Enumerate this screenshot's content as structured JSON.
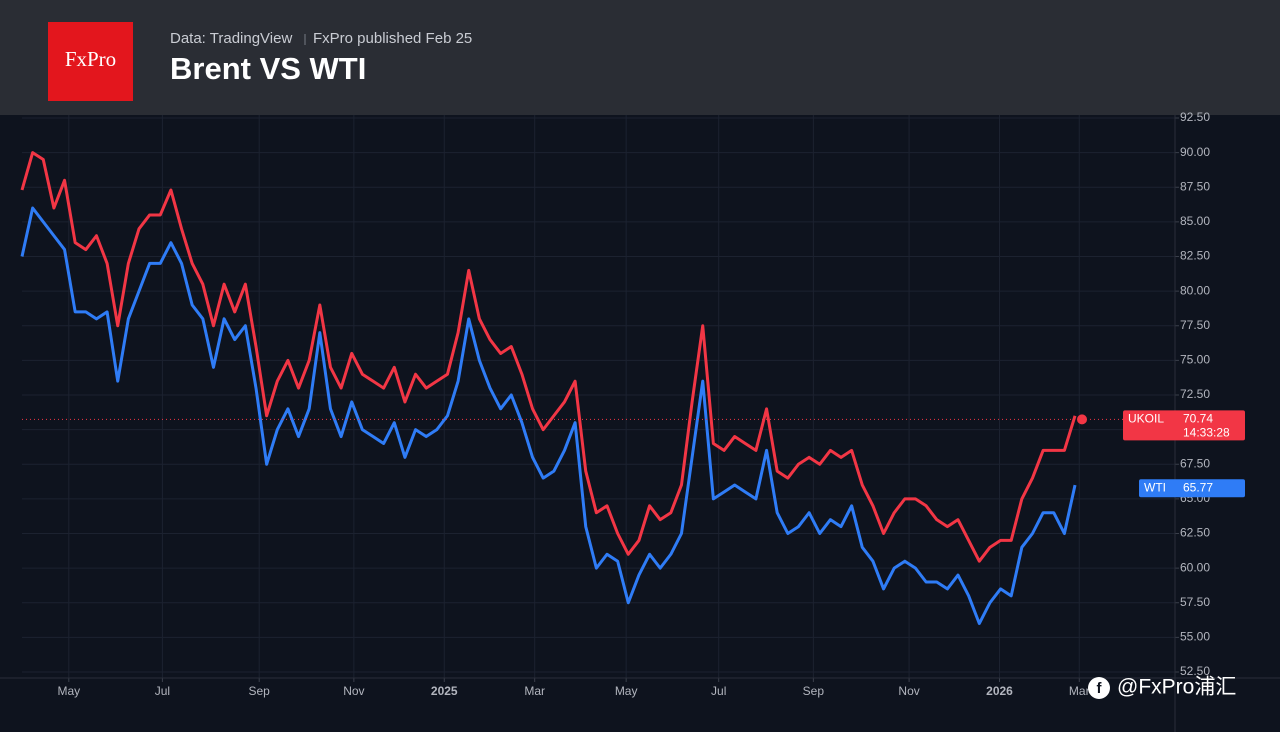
{
  "header": {
    "logo": "FxPro",
    "source": "Data: TradingView",
    "publisher": "FxPro published Feb 25"
  },
  "watermark": "@FxPro浦汇",
  "chart_data": {
    "type": "line",
    "title": "Brent VS WTI",
    "xlim": [
      0,
      108.4
    ],
    "xticks": [
      {
        "value": 4.4,
        "label": "May"
      },
      {
        "value": 13.2,
        "label": "Jul"
      },
      {
        "value": 22.3,
        "label": "Sep"
      },
      {
        "value": 31.2,
        "label": "Nov"
      },
      {
        "value": 39.7,
        "label": "2025"
      },
      {
        "value": 48.2,
        "label": "Mar"
      },
      {
        "value": 56.8,
        "label": "May"
      },
      {
        "value": 65.5,
        "label": "Jul"
      },
      {
        "value": 74.4,
        "label": "Sep"
      },
      {
        "value": 83.4,
        "label": "Nov"
      },
      {
        "value": 91.9,
        "label": "2026"
      },
      {
        "value": 99.4,
        "label": "Mar"
      }
    ],
    "ylim": [
      52.5,
      92.5
    ],
    "yticks": [
      {
        "value": 52.5,
        "label": "52.50"
      },
      {
        "value": 55,
        "label": "55.00"
      },
      {
        "value": 57.5,
        "label": "57.50"
      },
      {
        "value": 60,
        "label": "60.00"
      },
      {
        "value": 62.5,
        "label": "62.50"
      },
      {
        "value": 65,
        "label": "65.00"
      },
      {
        "value": 67.5,
        "label": "67.50"
      },
      {
        "value": 70,
        "label": "70.00"
      },
      {
        "value": 72.5,
        "label": "72.50"
      },
      {
        "value": 75,
        "label": "75.00"
      },
      {
        "value": 77.5,
        "label": "77.50"
      },
      {
        "value": 80,
        "label": "80.00"
      },
      {
        "value": 82.5,
        "label": "82.50"
      },
      {
        "value": 85,
        "label": "85.00"
      },
      {
        "value": 87.5,
        "label": "87.50"
      },
      {
        "value": 90,
        "label": "90.00"
      },
      {
        "value": 92.5,
        "label": "92.50"
      }
    ],
    "grid": true,
    "series": [
      {
        "name": "UKOIL",
        "color": "#f23645",
        "last": 70.74,
        "countdown": "14:33:28",
        "values": [
          87.3,
          90,
          89.5,
          86,
          88,
          83.5,
          83,
          84,
          82,
          77.5,
          82,
          84.5,
          85.5,
          85.5,
          87.3,
          84.5,
          82,
          80.5,
          77.5,
          80.5,
          78.5,
          80.5,
          76,
          71,
          73.5,
          75,
          73,
          75,
          79,
          74.5,
          73,
          75.5,
          74,
          73.5,
          73,
          74.5,
          72,
          74,
          73,
          73.5,
          74,
          77,
          81.5,
          78,
          76.5,
          75.5,
          76,
          74,
          71.5,
          70,
          71,
          72,
          73.5,
          67,
          64,
          64.5,
          62.5,
          61,
          62,
          64.5,
          63.5,
          64,
          66,
          72,
          77.5,
          69,
          68.5,
          69.5,
          69,
          68.5,
          71.5,
          67,
          66.5,
          67.5,
          68,
          67.5,
          68.5,
          68,
          68.5,
          66,
          64.5,
          62.5,
          64,
          65,
          65,
          64.5,
          63.5,
          63,
          63.5,
          62,
          60.5,
          61.5,
          62,
          62,
          65,
          66.5,
          68.5,
          68.5,
          68.5,
          71
        ]
      },
      {
        "name": "WTI",
        "color": "#2f7cf6",
        "last": 65.77,
        "values": [
          82.5,
          86,
          85,
          84,
          83,
          78.5,
          78.5,
          78,
          78.5,
          73.5,
          78,
          80,
          82,
          82,
          83.5,
          82,
          79,
          78,
          74.5,
          78,
          76.5,
          77.5,
          73,
          67.5,
          70,
          71.5,
          69.5,
          71.5,
          77,
          71.5,
          69.5,
          72,
          70,
          69.5,
          69,
          70.5,
          68,
          70,
          69.5,
          70,
          71,
          73.5,
          78,
          75,
          73,
          71.5,
          72.5,
          70.5,
          68,
          66.5,
          67,
          68.5,
          70.5,
          63,
          60,
          61,
          60.5,
          57.5,
          59.5,
          61,
          60,
          61,
          62.5,
          68,
          73.5,
          65,
          65.5,
          66,
          65.5,
          65,
          68.5,
          64,
          62.5,
          63,
          64,
          62.5,
          63.5,
          63,
          64.5,
          61.5,
          60.5,
          58.5,
          60,
          60.5,
          60,
          59,
          59,
          58.5,
          59.5,
          58,
          56,
          57.5,
          58.5,
          58,
          61.5,
          62.5,
          64,
          64,
          62.5,
          66
        ]
      }
    ]
  }
}
